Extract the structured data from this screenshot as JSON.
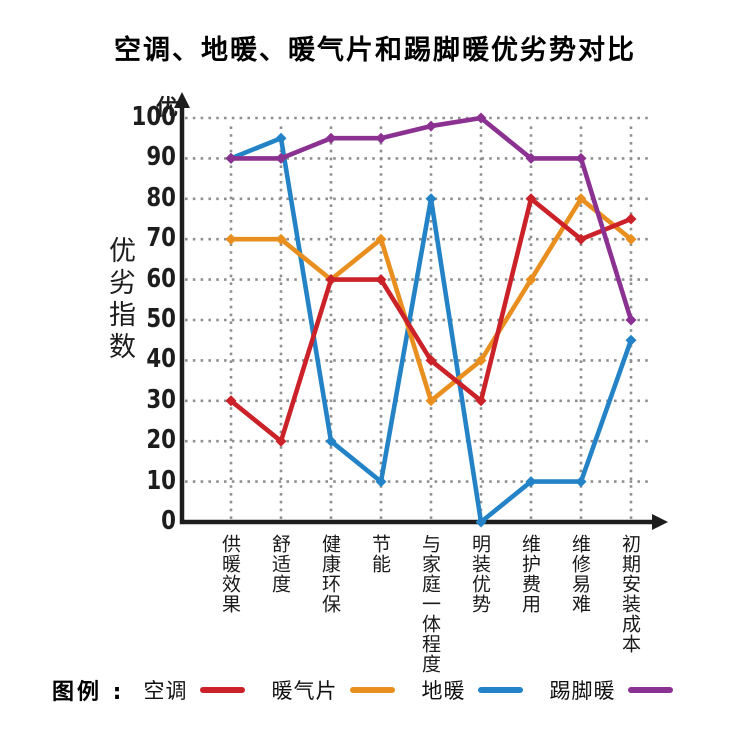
{
  "title": "空调、地暖、暖气片和踢脚暖优劣势对比",
  "legend": {
    "prefix": "图例 :"
  },
  "colors": {
    "background": "#ffffff",
    "axis": "#1d1d1d",
    "grid": "#909090",
    "text": "#1a1a1a",
    "series_air_conditioner": "#cb2229",
    "series_radiator": "#e88f1f",
    "series_floor_heating": "#2383c6",
    "series_baseboard_heating": "#8b3191"
  },
  "chart_data": {
    "type": "line",
    "title": "空调、地暖、暖气片和踢脚暖优劣势对比",
    "xlabel": "",
    "ylabel": "优劣指数",
    "y_unit_label": "优",
    "ylim": [
      0,
      100
    ],
    "y_ticks": [
      0,
      10,
      20,
      30,
      40,
      50,
      60,
      70,
      80,
      90,
      100
    ],
    "grid": "dotted",
    "legend_position": "bottom",
    "categories": [
      "供暖效果",
      "舒适度",
      "健康环保",
      "节能",
      "与家庭一体程度",
      "明装优势",
      "维护费用",
      "维修易难",
      "初期安装成本"
    ],
    "series": [
      {
        "name": "空调",
        "color": "#cb2229",
        "values": [
          30,
          20,
          60,
          60,
          40,
          30,
          80,
          70,
          75
        ]
      },
      {
        "name": "暖气片",
        "color": "#e88f1f",
        "values": [
          70,
          70,
          60,
          70,
          30,
          40,
          60,
          80,
          70
        ]
      },
      {
        "name": "地暖",
        "color": "#2383c6",
        "values": [
          90,
          95,
          20,
          10,
          80,
          0,
          10,
          10,
          45
        ]
      },
      {
        "name": "踢脚暖",
        "color": "#8b3191",
        "values": [
          90,
          90,
          95,
          95,
          98,
          100,
          90,
          90,
          50
        ]
      }
    ]
  }
}
